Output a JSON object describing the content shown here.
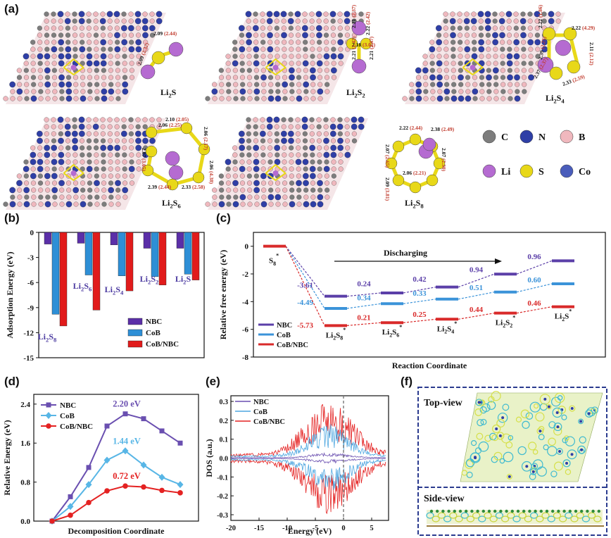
{
  "panel_labels": {
    "a": "(a)",
    "b": "(b)",
    "c": "(c)",
    "d": "(d)",
    "e": "(e)",
    "f": "(f)"
  },
  "panel_a": {
    "structures": [
      {
        "name": "Li2S",
        "bonds": [
          "2.09 (2.44)",
          "2.09 (2.32)"
        ]
      },
      {
        "name": "Li2S2",
        "bonds": [
          "2.21 (2.37)",
          "2.22 (2.42)",
          "2.18 (3.02)",
          "2.21 (2.42)",
          "2.21 (2.47)"
        ]
      },
      {
        "name": "Li2S4",
        "bonds": [
          "2.22 (1.86)",
          "2.22 (4.29)",
          "2.11 (2.12)",
          "2.39 (2.23)",
          "2.37 (2.37)",
          "2.33 (2.59)"
        ]
      },
      {
        "name": "Li2S6",
        "bonds": [
          "2.10 (2.05)",
          "2.06 (2.25)",
          "2.06 (2.17)",
          "2.07 (3.05)",
          "2.06 (4.38)",
          "2.39 (2.44)",
          "2.33 (2.58)"
        ]
      },
      {
        "name": "Li2S8",
        "bonds": [
          "2.22 (2.44)",
          "2.07 (2.65)",
          "2.38 (2.49)",
          "2.07 (2.30)",
          "2.09 (3.81)",
          "2.06 (2.21)"
        ]
      }
    ],
    "legend": [
      {
        "label": "C",
        "color": "#7d7d7d"
      },
      {
        "label": "N",
        "color": "#2f3fa6"
      },
      {
        "label": "B",
        "color": "#f0b8be"
      },
      {
        "label": "Li",
        "color": "#b56bd1"
      },
      {
        "label": "S",
        "color": "#e8d818"
      },
      {
        "label": "Co",
        "color": "#4a5dbb"
      }
    ]
  },
  "chart_data": [
    {
      "panel": "b",
      "type": "bar",
      "categories": [
        "Li2S8",
        "Li2S6",
        "Li2S4",
        "Li2S2",
        "Li2S"
      ],
      "series": [
        {
          "name": "NBC",
          "color": "#5b2fa8",
          "values": [
            -1.4,
            -1.3,
            -1.5,
            -1.9,
            -1.9
          ]
        },
        {
          "name": "CoB",
          "color": "#2e8fd6",
          "values": [
            -9.8,
            -5.1,
            -5.2,
            -5.3,
            -5.0
          ]
        },
        {
          "name": "CoB/NBC",
          "color": "#e11b1b",
          "values": [
            -11.2,
            -9.3,
            -7.0,
            -6.3,
            -5.7
          ]
        }
      ],
      "ylabel": "Adsorption Energy (eV)",
      "ylim": [
        -15,
        0
      ],
      "yticks": [
        "0",
        "-3",
        "-6",
        "-9",
        "-12",
        "-15"
      ]
    },
    {
      "panel": "c",
      "type": "line",
      "xlabel": "Reaction Coordinate",
      "ylabel": "Relative free energy (eV)",
      "ylim": [
        -8,
        1
      ],
      "yticks": [
        "0",
        "-2",
        "-4",
        "-6",
        "-8"
      ],
      "annotation": "Discharging",
      "start_label": "S8*",
      "species": [
        "Li2S8*",
        "Li2S6*",
        "Li2S4*",
        "Li2S2*",
        "Li2S*"
      ],
      "series": [
        {
          "name": "NBC",
          "color": "#5b3fa8",
          "levels": [
            0,
            -3.61,
            -3.37,
            -2.95,
            -2.01,
            -1.05
          ],
          "labels": [
            "-3.61",
            "0.24",
            "0.42",
            "0.94",
            "0.96"
          ]
        },
        {
          "name": "CoB",
          "color": "#3b93d9",
          "levels": [
            0,
            -4.49,
            -4.15,
            -3.82,
            -3.31,
            -2.71
          ],
          "labels": [
            "-4.49",
            "0.34",
            "0.33",
            "0.51",
            "0.60"
          ]
        },
        {
          "name": "CoB/NBC",
          "color": "#d92a2a",
          "levels": [
            0,
            -5.73,
            -5.52,
            -5.27,
            -4.83,
            -4.37
          ],
          "labels": [
            "-5.73",
            "0.21",
            "0.25",
            "0.44",
            "0.46"
          ]
        }
      ]
    },
    {
      "panel": "d",
      "type": "line",
      "xlabel": "Decomposition Coordinate",
      "ylabel": "Relative Energy (eV)",
      "ylim": [
        0,
        2.6
      ],
      "yticks": [
        "0.0",
        "0.8",
        "1.6",
        "2.4"
      ],
      "x": [
        0,
        1,
        2,
        3,
        4,
        5,
        6,
        7
      ],
      "series": [
        {
          "name": "NBC",
          "color": "#6a4fb0",
          "marker": "square",
          "values": [
            0.0,
            0.5,
            1.1,
            1.95,
            2.2,
            2.1,
            1.85,
            1.6
          ],
          "peak_label": "2.20 eV"
        },
        {
          "name": "CoB",
          "color": "#58b6e6",
          "marker": "diamond",
          "values": [
            0.0,
            0.3,
            0.75,
            1.25,
            1.44,
            1.15,
            0.9,
            0.75
          ],
          "peak_label": "1.44 eV"
        },
        {
          "name": "CoB/NBC",
          "color": "#e42222",
          "marker": "circle",
          "values": [
            0.0,
            0.12,
            0.38,
            0.62,
            0.72,
            0.7,
            0.63,
            0.58
          ],
          "peak_label": "0.72 eV"
        }
      ]
    },
    {
      "panel": "e",
      "type": "line",
      "xlabel": "Energy (eV)",
      "ylabel": "DOS (a.u.)",
      "xlim": [
        -20,
        8
      ],
      "ylim": [
        -0.33,
        0.33
      ],
      "xticks": [
        "-20",
        "-15",
        "-10",
        "-5",
        "0",
        "5"
      ],
      "yticks": [
        "-0.3",
        "-0.2",
        "-0.1",
        "0.0",
        "0.1",
        "0.2",
        "0.3"
      ],
      "series": [
        {
          "name": "NBC",
          "color": "#6a4fb0",
          "amplitude": 0.03
        },
        {
          "name": "CoB",
          "color": "#4da6e0",
          "amplitude": 0.18
        },
        {
          "name": "CoB/NBC",
          "color": "#e42222",
          "amplitude": 0.3
        }
      ]
    }
  ],
  "panel_f": {
    "top_label": "Top-view",
    "side_label": "Side-view"
  }
}
